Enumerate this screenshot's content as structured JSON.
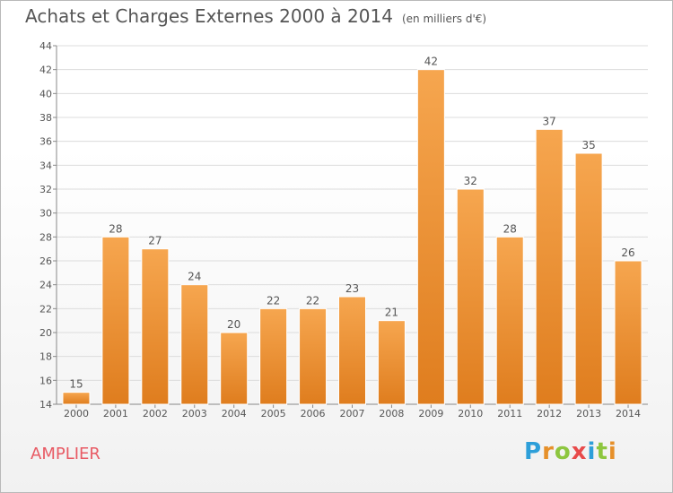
{
  "title": "Achats et Charges Externes 2000 à 2014",
  "unit_label": "(en milliers d'€)",
  "commune_name": "AMPLIER",
  "logo_text": "Proxiti",
  "colors": {
    "bar_top": "#f6a64f",
    "bar_bottom": "#df7d1e",
    "title": "#555555",
    "commune": "#e85a64",
    "logo": [
      "#2d9fd9",
      "#e6902a",
      "#8dc63f",
      "#e84b4b",
      "#2d9fd9",
      "#8dc63f",
      "#e6902a"
    ]
  },
  "chart_data": {
    "type": "bar",
    "title": "Achats et Charges Externes 2000 à 2014",
    "subtitle": "(en milliers d'€)",
    "categories": [
      "2000",
      "2001",
      "2002",
      "2003",
      "2004",
      "2005",
      "2006",
      "2007",
      "2008",
      "2009",
      "2010",
      "2011",
      "2012",
      "2013",
      "2014"
    ],
    "values": [
      15,
      28,
      27,
      24,
      20,
      22,
      22,
      23,
      21,
      42,
      32,
      28,
      37,
      35,
      26
    ],
    "ylim": [
      14,
      44
    ],
    "yticks": [
      14,
      16,
      18,
      20,
      22,
      24,
      26,
      28,
      30,
      32,
      34,
      36,
      38,
      40,
      42,
      44
    ],
    "grid": true,
    "xlabel": "",
    "ylabel": ""
  }
}
